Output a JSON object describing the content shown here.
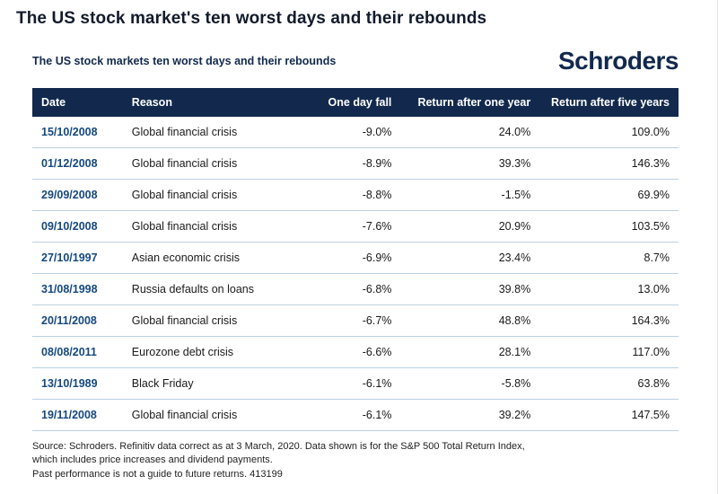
{
  "page": {
    "title": "The US stock market's ten worst days and their rebounds"
  },
  "card": {
    "subtitle": "The US stock markets ten worst days and their rebounds",
    "brand": "Schroders"
  },
  "footer": {
    "line1": "Source: Schroders. Refinitiv data correct as at 3 March, 2020. Data shown is for the S&P 500 Total Return Index,",
    "line2": "which includes price increases and dividend payments.",
    "line3": "Past performance is not a guide to future returns. 413199"
  },
  "colors": {
    "header_bg": "#12294d",
    "date_text": "#15497f",
    "row_divider": "#bcd0e2",
    "brand_navy": "#12294d"
  },
  "chart_data": {
    "type": "table",
    "title": "The US stock markets ten worst days and their rebounds",
    "columns": [
      "Date",
      "Reason",
      "One day fall",
      "Return after one year",
      "Return after five years"
    ],
    "rows": [
      [
        "15/10/2008",
        "Global financial crisis",
        "-9.0%",
        "24.0%",
        "109.0%"
      ],
      [
        "01/12/2008",
        "Global financial crisis",
        "-8.9%",
        "39.3%",
        "146.3%"
      ],
      [
        "29/09/2008",
        "Global financial crisis",
        "-8.8%",
        "-1.5%",
        "69.9%"
      ],
      [
        "09/10/2008",
        "Global financial crisis",
        "-7.6%",
        "20.9%",
        "103.5%"
      ],
      [
        "27/10/1997",
        "Asian economic crisis",
        "-6.9%",
        "23.4%",
        "8.7%"
      ],
      [
        "31/08/1998",
        "Russia defaults on loans",
        "-6.8%",
        "39.8%",
        "13.0%"
      ],
      [
        "20/11/2008",
        "Global financial crisis",
        "-6.7%",
        "48.8%",
        "164.3%"
      ],
      [
        "08/08/2011",
        "Eurozone debt crisis",
        "-6.6%",
        "28.1%",
        "117.0%"
      ],
      [
        "13/10/1989",
        "Black Friday",
        "-6.1%",
        "-5.8%",
        "63.8%"
      ],
      [
        "19/11/2008",
        "Global financial crisis",
        "-6.1%",
        "39.2%",
        "147.5%"
      ]
    ]
  }
}
